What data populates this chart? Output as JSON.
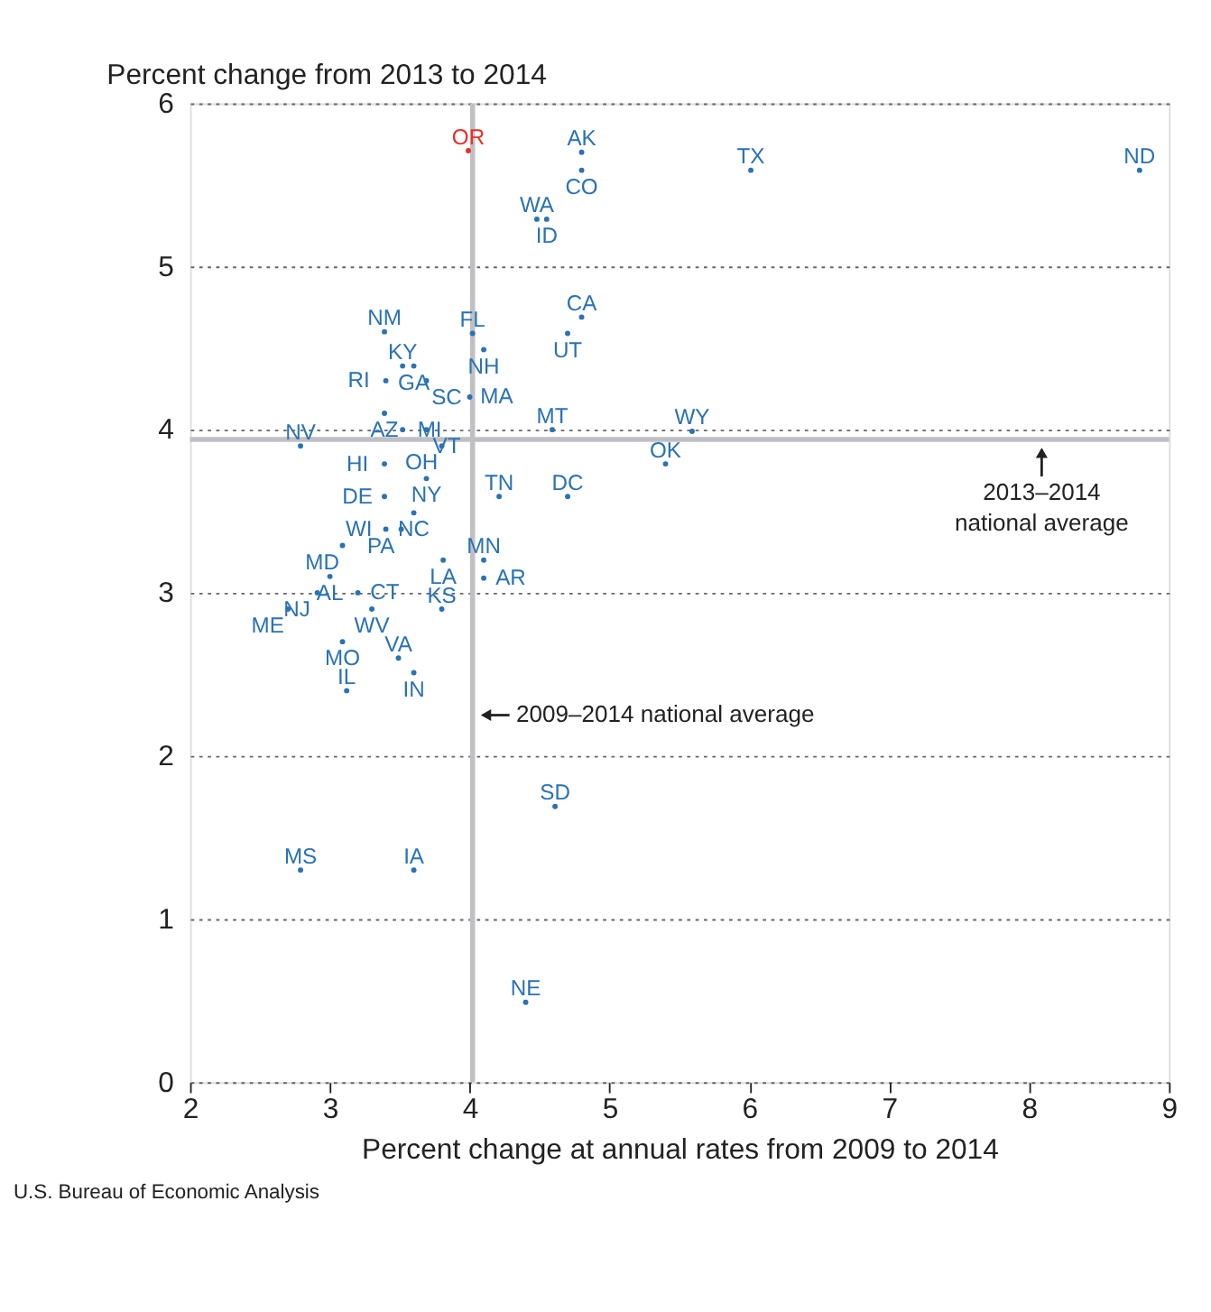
{
  "chart_data": {
    "type": "scatter",
    "ylabel": "Percent change from 2013 to 2014",
    "xlabel": "Percent change at annual rates from 2009 to 2014",
    "xlim": [
      2,
      9
    ],
    "xticks": [
      2,
      3,
      4,
      5,
      6,
      7,
      8,
      9
    ],
    "ylim": [
      0,
      6
    ],
    "yticks": [
      0,
      1,
      2,
      3,
      4,
      5,
      6
    ],
    "grid": "y",
    "marker": "circle",
    "x": [
      3.99,
      4.8,
      4.8,
      6.01,
      8.79,
      4.48,
      4.55,
      4.8,
      4.7,
      3.39,
      4.02,
      4.1,
      3.52,
      3.6,
      3.4,
      3.69,
      4.0,
      3.39,
      3.52,
      3.69,
      4.59,
      5.59,
      2.79,
      3.8,
      5.4,
      3.39,
      3.69,
      4.21,
      4.7,
      3.39,
      3.6,
      3.4,
      3.51,
      3.09,
      3.81,
      4.1,
      4.1,
      3.0,
      2.91,
      3.2,
      2.7,
      3.3,
      3.8,
      3.09,
      3.49,
      3.6,
      3.12,
      4.61,
      2.79,
      3.6,
      4.4
    ],
    "values": [
      5.71,
      5.7,
      5.59,
      5.59,
      5.59,
      5.29,
      5.29,
      4.69,
      4.59,
      4.6,
      4.59,
      4.49,
      4.39,
      4.39,
      4.3,
      4.3,
      4.2,
      4.1,
      4.0,
      4.0,
      4.0,
      3.99,
      3.9,
      3.9,
      3.79,
      3.79,
      3.7,
      3.59,
      3.59,
      3.59,
      3.49,
      3.39,
      3.39,
      3.29,
      3.2,
      3.2,
      3.09,
      3.1,
      3.0,
      3.0,
      2.9,
      2.9,
      2.9,
      2.7,
      2.6,
      2.51,
      2.4,
      1.69,
      1.3,
      1.3,
      0.49
    ],
    "value_labels": [
      "OR",
      "AK",
      "CO",
      "TX",
      "ND",
      "WA",
      "ID",
      "CA",
      "UT",
      "NM",
      "FL",
      "NH",
      "KY",
      "GA",
      "RI",
      "SC",
      "MA",
      "AZ",
      "MI",
      "VT",
      "MT",
      "WY",
      "NV",
      "OH",
      "OK",
      "HI",
      "NY",
      "TN",
      "DC",
      "DE",
      "NC",
      "WI",
      "PA",
      "MD",
      "LA",
      "MN",
      "AR",
      "AL",
      "NJ",
      "CT",
      "ME",
      "WV",
      "KS",
      "MO",
      "VA",
      "IN",
      "IL",
      "SD",
      "MS",
      "IA",
      "NE"
    ],
    "colors": [
      "#e8312a",
      "#2a72b5",
      "#2a72b5",
      "#2a72b5",
      "#2a72b5",
      "#2a72b5",
      "#2a72b5",
      "#2a72b5",
      "#2a72b5",
      "#2a72b5",
      "#2a72b5",
      "#2a72b5",
      "#2a72b5",
      "#2a72b5",
      "#2a72b5",
      "#2a72b5",
      "#2a72b5",
      "#2a72b5",
      "#2a72b5",
      "#2a72b5",
      "#2a72b5",
      "#2a72b5",
      "#2a72b5",
      "#2a72b5",
      "#2a72b5",
      "#2a72b5",
      "#2a72b5",
      "#2a72b5",
      "#2a72b5",
      "#2a72b5",
      "#2a72b5",
      "#2a72b5",
      "#2a72b5",
      "#2a72b5",
      "#2a72b5",
      "#2a72b5",
      "#2a72b5",
      "#2a72b5",
      "#2a72b5",
      "#2a72b5",
      "#2a72b5",
      "#2a72b5",
      "#2a72b5",
      "#2a72b5",
      "#2a72b5",
      "#2a72b5",
      "#2a72b5",
      "#2a72b5",
      "#2a72b5",
      "#2a72b5",
      "#2a72b5"
    ],
    "ref_lines": [
      {
        "axis": "x",
        "value": 4.02,
        "label": "2009–2014 national average",
        "color": "#c0c0c4"
      },
      {
        "axis": "y",
        "value": 3.94,
        "label": "2013–2014\nnational average",
        "color": "#c0c0c4"
      }
    ],
    "annotations": [
      "U.S. Bureau of Economic Analysis"
    ]
  }
}
